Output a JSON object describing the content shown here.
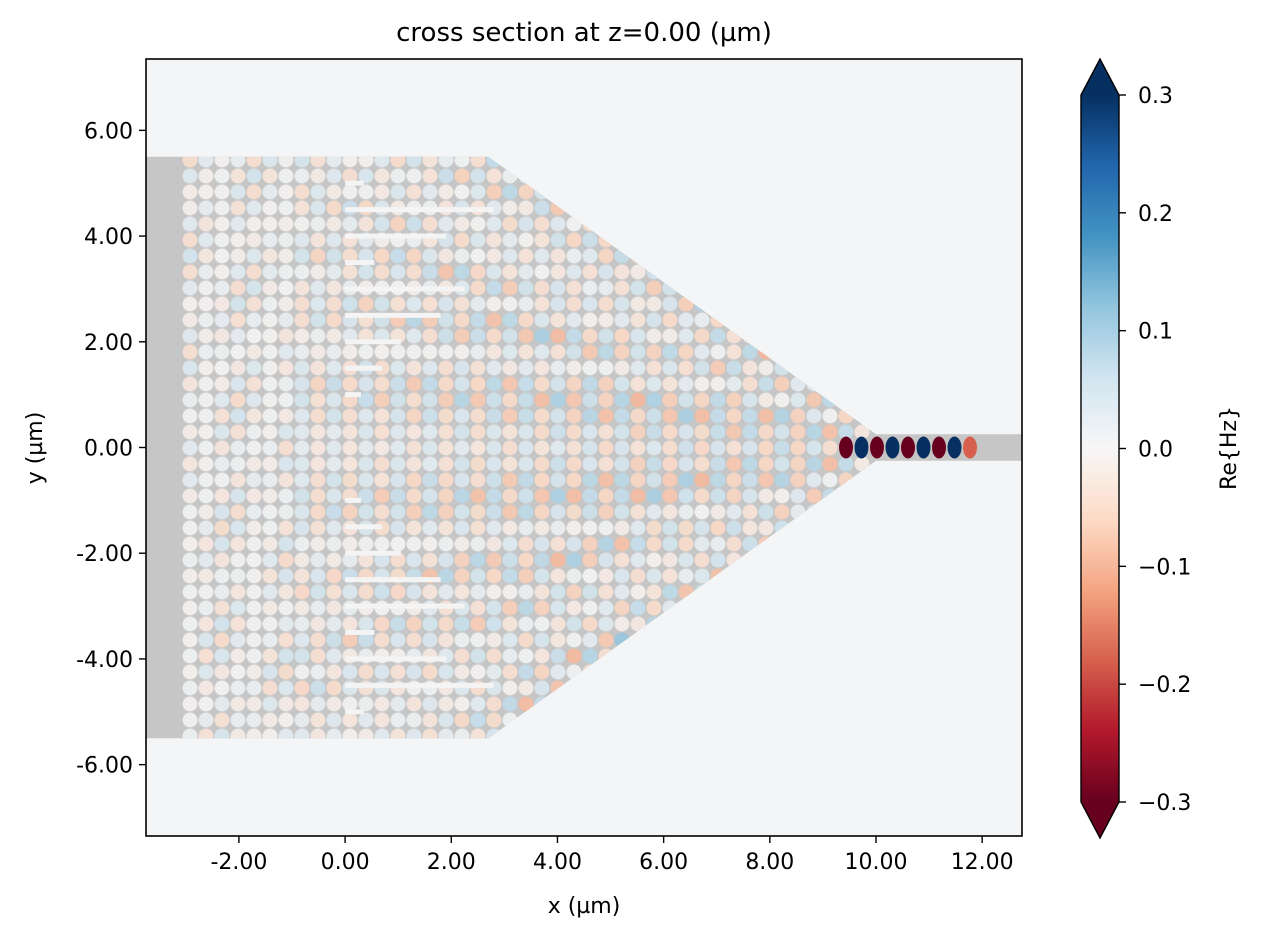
{
  "chart_data": {
    "type": "heatmap",
    "title": "cross section at z=0.00 (µm)",
    "xlabel": "x (µm)",
    "ylabel": "y (µm)",
    "xlim": [
      -3.75,
      12.75
    ],
    "ylim": [
      -7.35,
      7.35
    ],
    "x_ticks": [
      -2,
      0,
      2,
      4,
      6,
      8,
      10,
      12
    ],
    "x_tick_labels": [
      "-2.00",
      "0.00",
      "2.00",
      "4.00",
      "6.00",
      "8.00",
      "10.00",
      "12.00"
    ],
    "y_ticks": [
      6,
      4,
      2,
      0,
      -2,
      -4,
      -6
    ],
    "y_tick_labels": [
      "6.00",
      "4.00",
      "2.00",
      "0.00",
      "-2.00",
      "-4.00",
      "-6.00"
    ],
    "colorbar": {
      "label": "Re{Hz}",
      "colormap": "RdBu",
      "vmin": -0.3,
      "vmax": 0.3,
      "extend": "both",
      "ticks": [
        0.3,
        0.2,
        0.1,
        0.0,
        -0.1,
        -0.2,
        -0.3
      ],
      "tick_labels": [
        "0.3",
        "0.2",
        "0.1",
        "0.0",
        "−0.1",
        "−0.2",
        "−0.3"
      ],
      "color_top": "#053061",
      "color_bottom": "#67001f"
    },
    "structure": {
      "slab_x_range": [
        -3.75,
        2.7
      ],
      "slab_half_height": 5.5,
      "taper_end_x": 10.0,
      "waveguide_half_width": 0.25,
      "waveguide_x_end": 12.75,
      "grating_bars": [
        {
          "y": 5.0,
          "x_end": 0.35
        },
        {
          "y": 4.5,
          "x_end": 2.8
        },
        {
          "y": 4.0,
          "x_end": 1.9
        },
        {
          "y": 3.5,
          "x_end": 0.55
        },
        {
          "y": 3.0,
          "x_end": 2.25
        },
        {
          "y": 2.5,
          "x_end": 1.8
        },
        {
          "y": 2.0,
          "x_end": 1.05
        },
        {
          "y": 1.5,
          "x_end": 0.7
        },
        {
          "y": 1.0,
          "x_end": 0.3
        },
        {
          "y": -1.0,
          "x_end": 0.3
        },
        {
          "y": -1.5,
          "x_end": 0.7
        },
        {
          "y": -2.0,
          "x_end": 1.05
        },
        {
          "y": -2.5,
          "x_end": 1.8
        },
        {
          "y": -3.0,
          "x_end": 2.25
        },
        {
          "y": -3.5,
          "x_end": 0.55
        },
        {
          "y": -4.0,
          "x_end": 1.9
        },
        {
          "y": -4.5,
          "x_end": 2.8
        },
        {
          "y": -5.0,
          "x_end": 0.35
        }
      ],
      "colors": {
        "slab": "#c6c6c6",
        "background": "#f3f5f6",
        "bars": "#f4f4f4"
      }
    }
  }
}
